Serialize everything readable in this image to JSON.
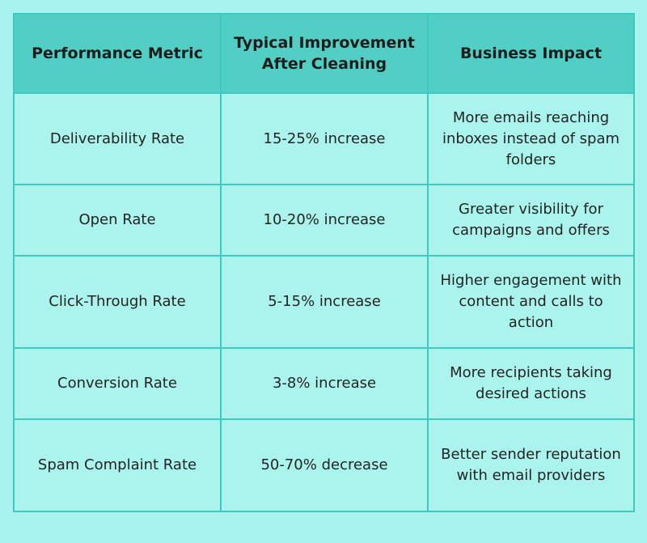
{
  "table": {
    "headers": [
      "Performance Metric",
      "Typical Improvement After Cleaning",
      "Business Impact"
    ],
    "rows": [
      [
        "Deliverability Rate",
        "15-25% increase",
        "More emails reaching inboxes instead of spam folders"
      ],
      [
        "Open Rate",
        "10-20% increase",
        "Greater visibility for campaigns and offers"
      ],
      [
        "Click-Through Rate",
        "5-15% increase",
        "Higher engagement with content and calls to action"
      ],
      [
        "Conversion Rate",
        "3-8% increase",
        "More recipients taking desired actions"
      ],
      [
        "Spam Complaint Rate",
        "50-70% decrease",
        "Better sender reputation with email providers"
      ]
    ]
  },
  "colors": {
    "background": "#a8f3ee",
    "header_fill": "#52cfc4",
    "cell_fill": "#abf4ee",
    "border": "#3fc8bf"
  }
}
